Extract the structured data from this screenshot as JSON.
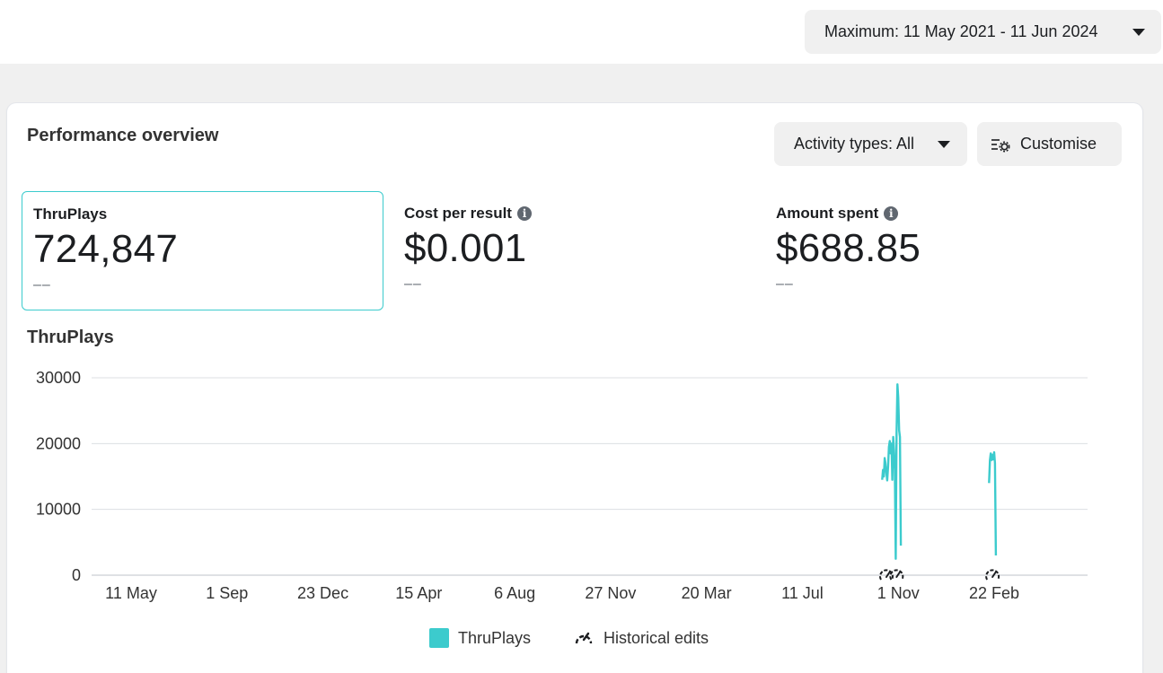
{
  "date_range": {
    "label": "Maximum: 11 May 2021 - 11 Jun 2024"
  },
  "overview": {
    "title": "Performance overview",
    "activity_label": "Activity types: All",
    "customise_label": "Customise"
  },
  "metrics": [
    {
      "label": "ThruPlays",
      "value": "724,847",
      "delta": "––",
      "selected": true,
      "info": false
    },
    {
      "label": "Cost per result",
      "value": "$0.001",
      "delta": "––",
      "selected": false,
      "info": true
    },
    {
      "label": "Amount spent",
      "value": "$688.85",
      "delta": "––",
      "selected": false,
      "info": true
    }
  ],
  "chart": {
    "title": "ThruPlays",
    "legend": {
      "series": "ThruPlays",
      "edits": "Historical edits"
    }
  },
  "colors": {
    "series": "#3ccbcd",
    "accent_border": "#3ccbcd"
  },
  "icons": {
    "dropdown": "caret-down-icon",
    "customise": "sliders-gear-icon",
    "info": "info-icon",
    "edits": "gauge-icon"
  },
  "chart_data": {
    "type": "line",
    "ylim": [
      0,
      30000
    ],
    "yticks": [
      0,
      10000,
      20000,
      30000
    ],
    "xticks": [
      "11 May",
      "1 Sep",
      "23 Dec",
      "15 Apr",
      "6 Aug",
      "27 Nov",
      "20 Mar",
      "11 Jul",
      "1 Nov",
      "22 Feb"
    ],
    "xtick_dates": [
      "2021-05-11",
      "2021-09-01",
      "2021-12-23",
      "2022-04-15",
      "2022-08-06",
      "2022-11-27",
      "2023-03-20",
      "2023-07-11",
      "2023-11-01",
      "2024-02-22"
    ],
    "xlim": [
      "2021-05-11",
      "2024-06-11"
    ],
    "series": [
      {
        "name": "ThruPlays",
        "segments": [
          [
            [
              "2023-10-13",
              14500
            ],
            [
              "2023-10-14",
              16000
            ],
            [
              "2023-10-15",
              15000
            ],
            [
              "2023-10-16",
              17800
            ],
            [
              "2023-10-17",
              17000
            ],
            [
              "2023-10-18",
              15500
            ],
            [
              "2023-10-19",
              14400
            ],
            [
              "2023-10-20",
              16500
            ],
            [
              "2023-10-21",
              19500
            ],
            [
              "2023-10-22",
              20400
            ],
            [
              "2023-10-23",
              18500
            ],
            [
              "2023-10-24",
              20000
            ],
            [
              "2023-10-25",
              14500
            ],
            [
              "2023-10-26",
              21000
            ],
            [
              "2023-10-27",
              19000
            ],
            [
              "2023-10-28",
              16000
            ],
            [
              "2023-10-29",
              2500
            ],
            [
              "2023-10-30",
              21500
            ],
            [
              "2023-10-31",
              29000
            ],
            [
              "2023-11-01",
              27000
            ],
            [
              "2023-11-02",
              22000
            ],
            [
              "2023-11-03",
              21000
            ],
            [
              "2023-11-04",
              4500
            ]
          ],
          [
            [
              "2024-02-16",
              14000
            ],
            [
              "2024-02-17",
              17500
            ],
            [
              "2024-02-18",
              18500
            ],
            [
              "2024-02-19",
              17500
            ],
            [
              "2024-02-20",
              18300
            ],
            [
              "2024-02-21",
              17600
            ],
            [
              "2024-02-22",
              18700
            ],
            [
              "2024-02-23",
              17000
            ],
            [
              "2024-02-24",
              3000
            ]
          ]
        ]
      }
    ],
    "edit_markers": [
      "2023-10-18",
      "2023-10-30",
      "2024-02-20"
    ],
    "grid": true
  }
}
